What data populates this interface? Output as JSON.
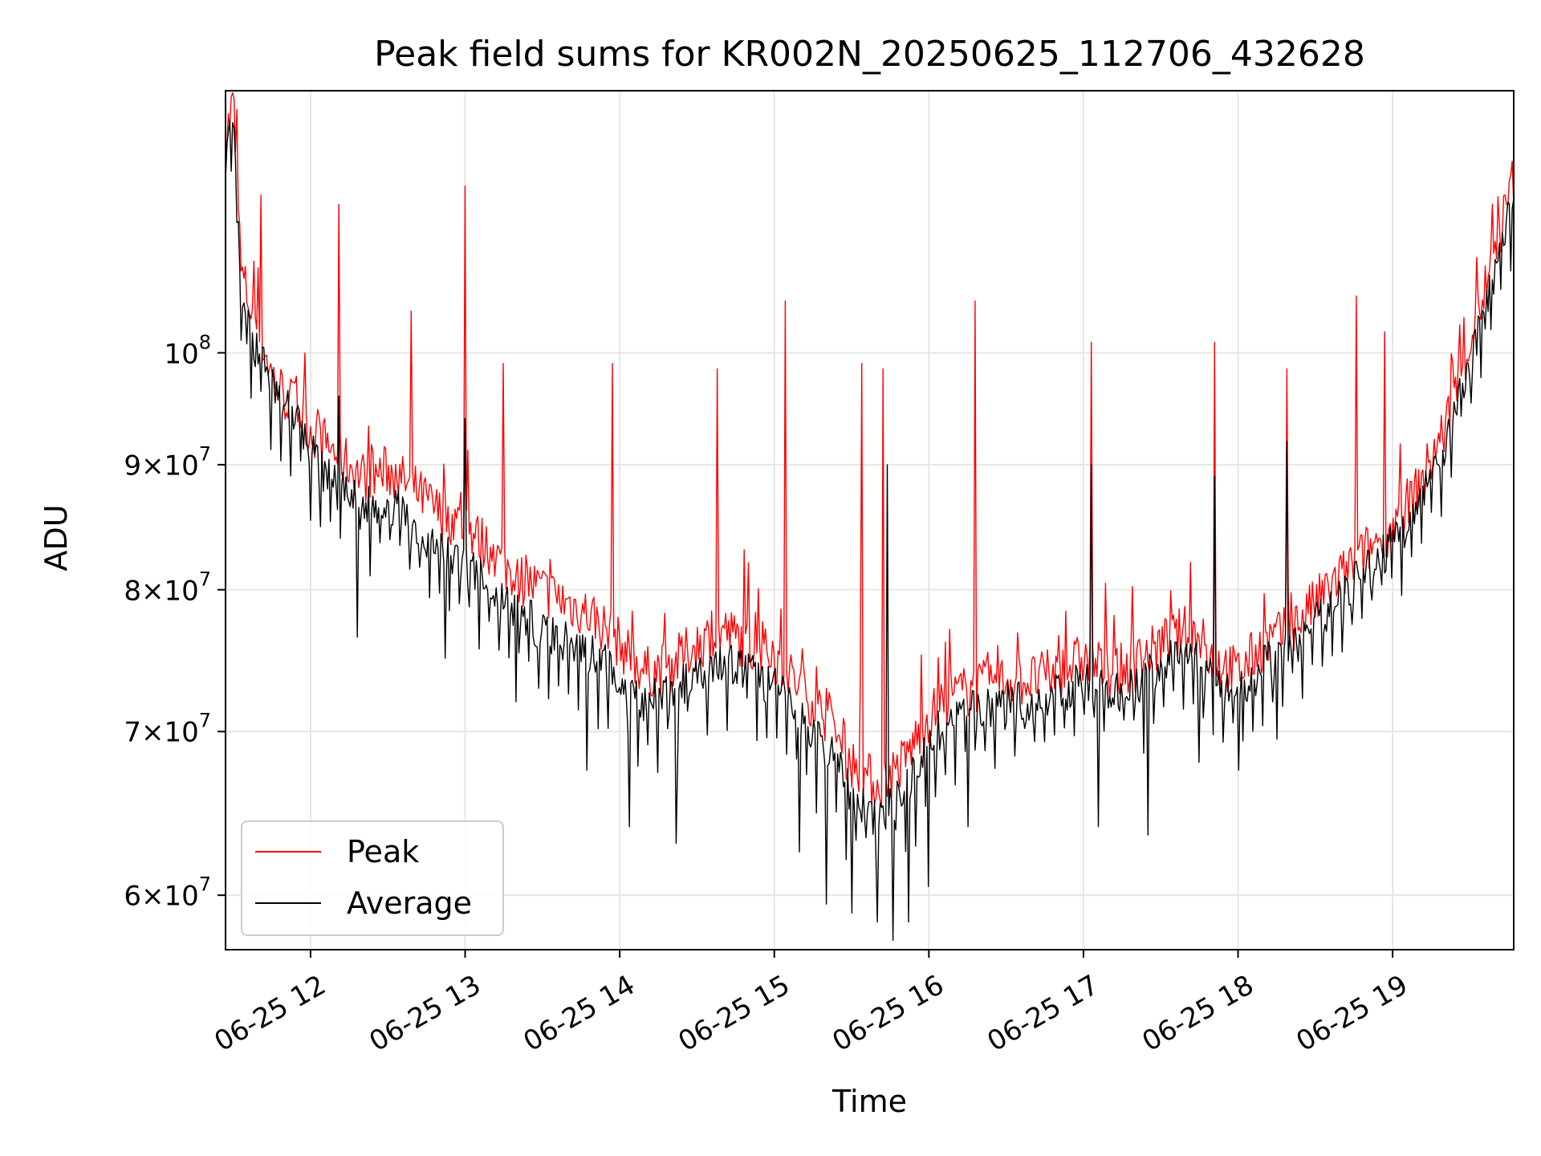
{
  "chart_data": {
    "type": "line",
    "title": "Peak field sums for KR002N_20250625_112706_432628",
    "xlabel": "Time",
    "ylabel": "ADU",
    "y_scale": "log",
    "ylim": [
      57000000,
      128000000
    ],
    "xlim": [
      "2025-06-25 11:27",
      "2025-06-25 19:47"
    ],
    "grid": true,
    "legend_position": "lower-left",
    "y_ticks": [
      {
        "value": 100000000,
        "mantissa": "",
        "base": "10",
        "exp": "8"
      },
      {
        "value": 90000000,
        "mantissa": "9",
        "base": "10",
        "exp": "7"
      },
      {
        "value": 80000000,
        "mantissa": "8",
        "base": "10",
        "exp": "7"
      },
      {
        "value": 70000000,
        "mantissa": "7",
        "base": "10",
        "exp": "7"
      },
      {
        "value": 60000000,
        "mantissa": "6",
        "base": "10",
        "exp": "7"
      }
    ],
    "x_ticks": [
      {
        "time": "2025-06-25 12:00",
        "label": "06-25 12"
      },
      {
        "time": "2025-06-25 13:00",
        "label": "06-25 13"
      },
      {
        "time": "2025-06-25 14:00",
        "label": "06-25 14"
      },
      {
        "time": "2025-06-25 15:00",
        "label": "06-25 15"
      },
      {
        "time": "2025-06-25 16:00",
        "label": "06-25 16"
      },
      {
        "time": "2025-06-25 17:00",
        "label": "06-25 17"
      },
      {
        "time": "2025-06-25 18:00",
        "label": "06-25 18"
      },
      {
        "time": "2025-06-25 19:00",
        "label": "06-25 19"
      }
    ],
    "series": [
      {
        "name": "Peak",
        "color": "#ff0000",
        "points": [
          [
            "2025-06-25 11:27",
            122000000
          ],
          [
            "2025-06-25 11:30",
            127000000
          ],
          [
            "2025-06-25 11:33",
            108000000
          ],
          [
            "2025-06-25 11:36",
            105000000
          ],
          [
            "2025-06-25 11:40",
            102000000
          ],
          [
            "2025-06-25 11:45",
            98000000
          ],
          [
            "2025-06-25 11:50",
            96000000
          ],
          [
            "2025-06-25 11:55",
            95000000
          ],
          [
            "2025-06-25 12:00",
            93000000
          ],
          [
            "2025-06-25 12:10",
            91000000
          ],
          [
            "2025-06-25 12:20",
            89000000
          ],
          [
            "2025-06-25 12:30",
            89500000
          ],
          [
            "2025-06-25 12:40",
            88000000
          ],
          [
            "2025-06-25 12:50",
            86000000
          ],
          [
            "2025-06-25 13:00",
            85000000
          ],
          [
            "2025-06-25 13:10",
            83000000
          ],
          [
            "2025-06-25 13:20",
            81000000
          ],
          [
            "2025-06-25 13:30",
            80000000
          ],
          [
            "2025-06-25 13:40",
            79000000
          ],
          [
            "2025-06-25 13:50",
            78000000
          ],
          [
            "2025-06-25 14:00",
            76000000
          ],
          [
            "2025-06-25 14:10",
            74000000
          ],
          [
            "2025-06-25 14:20",
            74500000
          ],
          [
            "2025-06-25 14:30",
            76000000
          ],
          [
            "2025-06-25 14:40",
            77000000
          ],
          [
            "2025-06-25 14:50",
            76000000
          ],
          [
            "2025-06-25 15:00",
            75000000
          ],
          [
            "2025-06-25 15:10",
            73000000
          ],
          [
            "2025-06-25 15:20",
            71000000
          ],
          [
            "2025-06-25 15:30",
            68000000
          ],
          [
            "2025-06-25 15:40",
            66500000
          ],
          [
            "2025-06-25 15:50",
            68000000
          ],
          [
            "2025-06-25 16:00",
            71000000
          ],
          [
            "2025-06-25 16:10",
            72500000
          ],
          [
            "2025-06-25 16:20",
            73000000
          ],
          [
            "2025-06-25 16:30",
            73500000
          ],
          [
            "2025-06-25 16:40",
            73500000
          ],
          [
            "2025-06-25 16:50",
            74000000
          ],
          [
            "2025-06-25 17:00",
            75000000
          ],
          [
            "2025-06-25 17:10",
            74000000
          ],
          [
            "2025-06-25 17:20",
            74500000
          ],
          [
            "2025-06-25 17:30",
            76000000
          ],
          [
            "2025-06-25 17:40",
            77000000
          ],
          [
            "2025-06-25 17:50",
            75000000
          ],
          [
            "2025-06-25 18:00",
            74000000
          ],
          [
            "2025-06-25 18:10",
            76000000
          ],
          [
            "2025-06-25 18:20",
            77000000
          ],
          [
            "2025-06-25 18:30",
            79000000
          ],
          [
            "2025-06-25 18:40",
            81000000
          ],
          [
            "2025-06-25 18:50",
            83000000
          ],
          [
            "2025-06-25 19:00",
            85000000
          ],
          [
            "2025-06-25 19:10",
            88000000
          ],
          [
            "2025-06-25 19:20",
            93000000
          ],
          [
            "2025-06-25 19:30",
            101000000
          ],
          [
            "2025-06-25 19:40",
            110000000
          ],
          [
            "2025-06-25 19:47",
            118000000
          ]
        ],
        "spikes": [
          [
            "2025-06-25 11:41",
            116000000
          ],
          [
            "2025-06-25 12:11",
            115000000
          ],
          [
            "2025-06-25 12:39",
            104000000
          ],
          [
            "2025-06-25 13:00",
            117000000
          ],
          [
            "2025-06-25 13:15",
            99000000
          ],
          [
            "2025-06-25 13:57",
            99000000
          ],
          [
            "2025-06-25 14:38",
            98500000
          ],
          [
            "2025-06-25 15:04",
            105000000
          ],
          [
            "2025-06-25 15:34",
            99000000
          ],
          [
            "2025-06-25 15:42",
            98500000
          ],
          [
            "2025-06-25 16:18",
            105000000
          ],
          [
            "2025-06-25 17:03",
            101000000
          ],
          [
            "2025-06-25 17:51",
            101000000
          ],
          [
            "2025-06-25 18:19",
            98500000
          ],
          [
            "2025-06-25 18:46",
            105500000
          ],
          [
            "2025-06-25 18:57",
            102000000
          ]
        ]
      },
      {
        "name": "Average",
        "color": "#000000",
        "points": [
          [
            "2025-06-25 11:27",
            120000000
          ],
          [
            "2025-06-25 11:30",
            124000000
          ],
          [
            "2025-06-25 11:33",
            104000000
          ],
          [
            "2025-06-25 11:36",
            102000000
          ],
          [
            "2025-06-25 11:40",
            100000000
          ],
          [
            "2025-06-25 11:45",
            97000000
          ],
          [
            "2025-06-25 11:50",
            95000000
          ],
          [
            "2025-06-25 11:55",
            94000000
          ],
          [
            "2025-06-25 12:00",
            91000000
          ],
          [
            "2025-06-25 12:10",
            88000000
          ],
          [
            "2025-06-25 12:20",
            86500000
          ],
          [
            "2025-06-25 12:30",
            87000000
          ],
          [
            "2025-06-25 12:40",
            85000000
          ],
          [
            "2025-06-25 12:50",
            83000000
          ],
          [
            "2025-06-25 13:00",
            82000000
          ],
          [
            "2025-06-25 13:10",
            80000000
          ],
          [
            "2025-06-25 13:20",
            78500000
          ],
          [
            "2025-06-25 13:30",
            77000000
          ],
          [
            "2025-06-25 13:40",
            76000000
          ],
          [
            "2025-06-25 13:50",
            75500000
          ],
          [
            "2025-06-25 14:00",
            73500000
          ],
          [
            "2025-06-25 14:10",
            72000000
          ],
          [
            "2025-06-25 14:20",
            72500000
          ],
          [
            "2025-06-25 14:30",
            74000000
          ],
          [
            "2025-06-25 14:40",
            75000000
          ],
          [
            "2025-06-25 14:50",
            74000000
          ],
          [
            "2025-06-25 15:00",
            73000000
          ],
          [
            "2025-06-25 15:10",
            71000000
          ],
          [
            "2025-06-25 15:20",
            69000000
          ],
          [
            "2025-06-25 15:30",
            66000000
          ],
          [
            "2025-06-25 15:40",
            64500000
          ],
          [
            "2025-06-25 15:50",
            66000000
          ],
          [
            "2025-06-25 16:00",
            69500000
          ],
          [
            "2025-06-25 16:10",
            71000000
          ],
          [
            "2025-06-25 16:20",
            71500000
          ],
          [
            "2025-06-25 16:30",
            72000000
          ],
          [
            "2025-06-25 16:40",
            72000000
          ],
          [
            "2025-06-25 16:50",
            72500000
          ],
          [
            "2025-06-25 17:00",
            73500000
          ],
          [
            "2025-06-25 17:10",
            72500000
          ],
          [
            "2025-06-25 17:20",
            73000000
          ],
          [
            "2025-06-25 17:30",
            74500000
          ],
          [
            "2025-06-25 17:40",
            75500000
          ],
          [
            "2025-06-25 17:50",
            73500000
          ],
          [
            "2025-06-25 18:00",
            72500000
          ],
          [
            "2025-06-25 18:10",
            74500000
          ],
          [
            "2025-06-25 18:20",
            75500000
          ],
          [
            "2025-06-25 18:30",
            77500000
          ],
          [
            "2025-06-25 18:40",
            79500000
          ],
          [
            "2025-06-25 18:50",
            81500000
          ],
          [
            "2025-06-25 19:00",
            83500000
          ],
          [
            "2025-06-25 19:10",
            86500000
          ],
          [
            "2025-06-25 19:20",
            91000000
          ],
          [
            "2025-06-25 19:30",
            99000000
          ],
          [
            "2025-06-25 19:40",
            108000000
          ],
          [
            "2025-06-25 19:47",
            116000000
          ]
        ],
        "dips": [
          [
            "2025-06-25 12:18",
            76500000
          ],
          [
            "2025-06-25 12:52",
            75000000
          ],
          [
            "2025-06-25 13:20",
            72000000
          ],
          [
            "2025-06-25 13:47",
            67500000
          ],
          [
            "2025-06-25 14:04",
            64000000
          ],
          [
            "2025-06-25 14:22",
            63000000
          ],
          [
            "2025-06-25 15:10",
            62500000
          ],
          [
            "2025-06-25 15:20",
            59500000
          ],
          [
            "2025-06-25 15:30",
            59000000
          ],
          [
            "2025-06-25 15:40",
            58500000
          ],
          [
            "2025-06-25 15:46",
            57500000
          ],
          [
            "2025-06-25 15:52",
            58500000
          ],
          [
            "2025-06-25 16:00",
            60500000
          ],
          [
            "2025-06-25 16:15",
            64000000
          ],
          [
            "2025-06-25 17:06",
            64000000
          ],
          [
            "2025-06-25 17:25",
            63500000
          ],
          [
            "2025-06-25 17:45",
            68000000
          ],
          [
            "2025-06-25 18:00",
            67500000
          ],
          [
            "2025-06-25 18:15",
            69500000
          ]
        ],
        "spikes": [
          [
            "2025-06-25 12:11",
            96000000
          ],
          [
            "2025-06-25 13:00",
            94000000
          ],
          [
            "2025-06-25 15:44",
            90000000
          ],
          [
            "2025-06-25 17:03",
            90000000
          ],
          [
            "2025-06-25 17:51",
            89000000
          ],
          [
            "2025-06-25 18:19",
            92000000
          ]
        ]
      }
    ]
  }
}
